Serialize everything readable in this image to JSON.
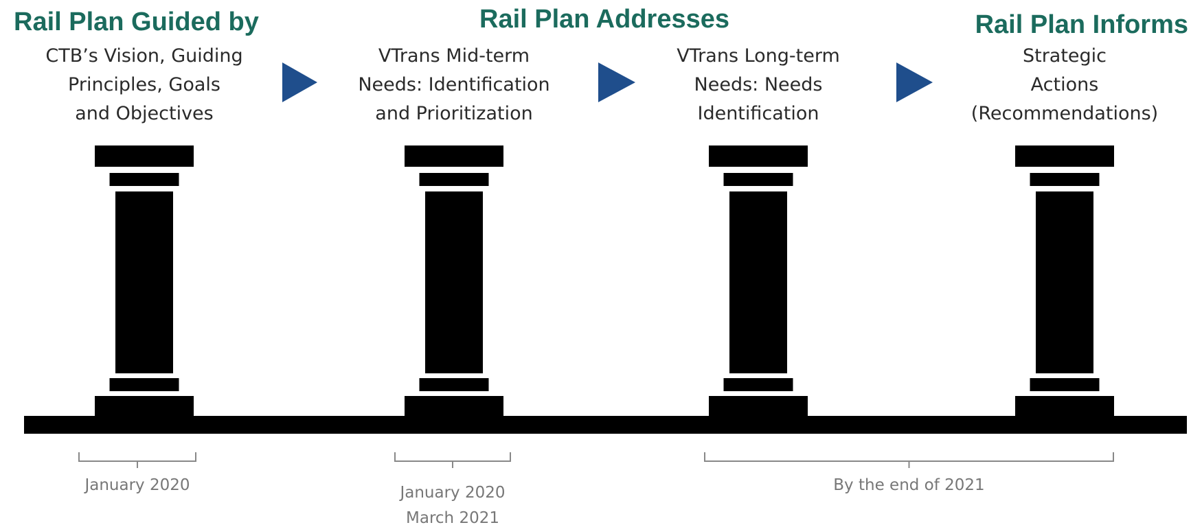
{
  "headers": [
    "Rail Plan Guided by",
    "Rail Plan Addresses",
    "Rail Plan Informs"
  ],
  "pillars": [
    {
      "lines": [
        "CTB’s Vision, Guiding",
        "Principles, Goals",
        "and Objectives"
      ]
    },
    {
      "lines": [
        "VTrans Mid-term",
        "Needs: Identification",
        "and Prioritization"
      ]
    },
    {
      "lines": [
        "VTrans Long-term",
        "Needs: Needs",
        "Identification"
      ]
    },
    {
      "lines": [
        "Strategic",
        "Actions",
        "(Recommendations)"
      ]
    }
  ],
  "timelines": [
    {
      "lines": [
        "January 2020"
      ]
    },
    {
      "lines": [
        "January 2020",
        "March 2021"
      ]
    },
    {
      "lines": [
        "By the end of 2021"
      ]
    }
  ]
}
